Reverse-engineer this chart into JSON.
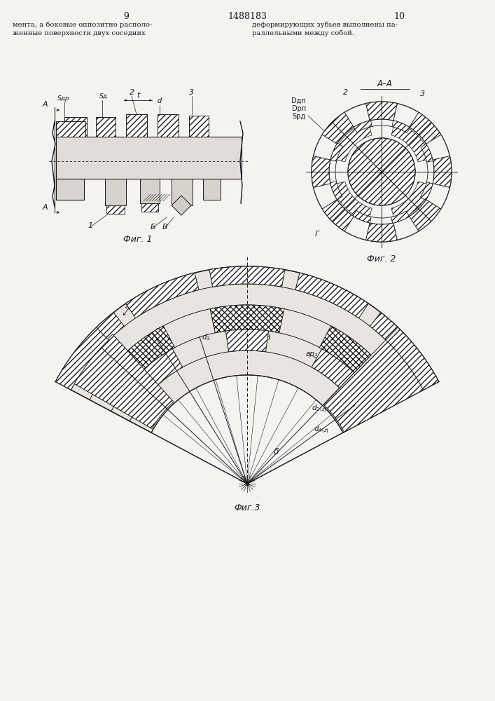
{
  "page_number_left": "9",
  "page_number_center": "1488183",
  "page_number_right": "10",
  "text_left_line1": "мента, а боковые оппозитно располо-",
  "text_left_line2": "женные поверхности двух соседних",
  "text_right_line1": "деформирующих зубьев выполнены па-",
  "text_right_line2": "раллельными между собой.",
  "fig1_caption": "Фиг. 1",
  "fig2_caption": "Фиг. 2",
  "fig3_caption": "Фиг.3",
  "bg_color": "#f5f3ef",
  "line_color": "#1a1a1a"
}
